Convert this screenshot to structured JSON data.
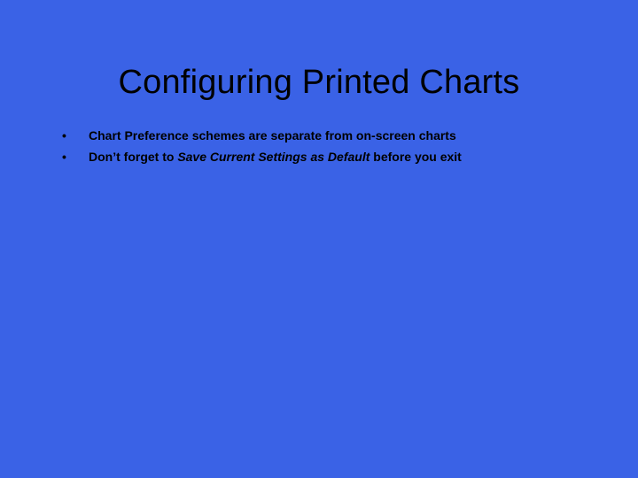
{
  "slide": {
    "background_color": "#3a62e6",
    "text_color": "#000000",
    "title": {
      "text": "Configuring Printed Charts",
      "fontsize": 38,
      "weight": 400
    },
    "bullets": {
      "marker": "•",
      "fontsize": 14,
      "weight": 700,
      "items": [
        {
          "before": "Chart Preference schemes are separate from on-screen charts",
          "italic": "",
          "after": ""
        },
        {
          "before": "Don’t forget to ",
          "italic": "Save Current Settings as Default",
          "after": " before you exit"
        }
      ]
    }
  }
}
